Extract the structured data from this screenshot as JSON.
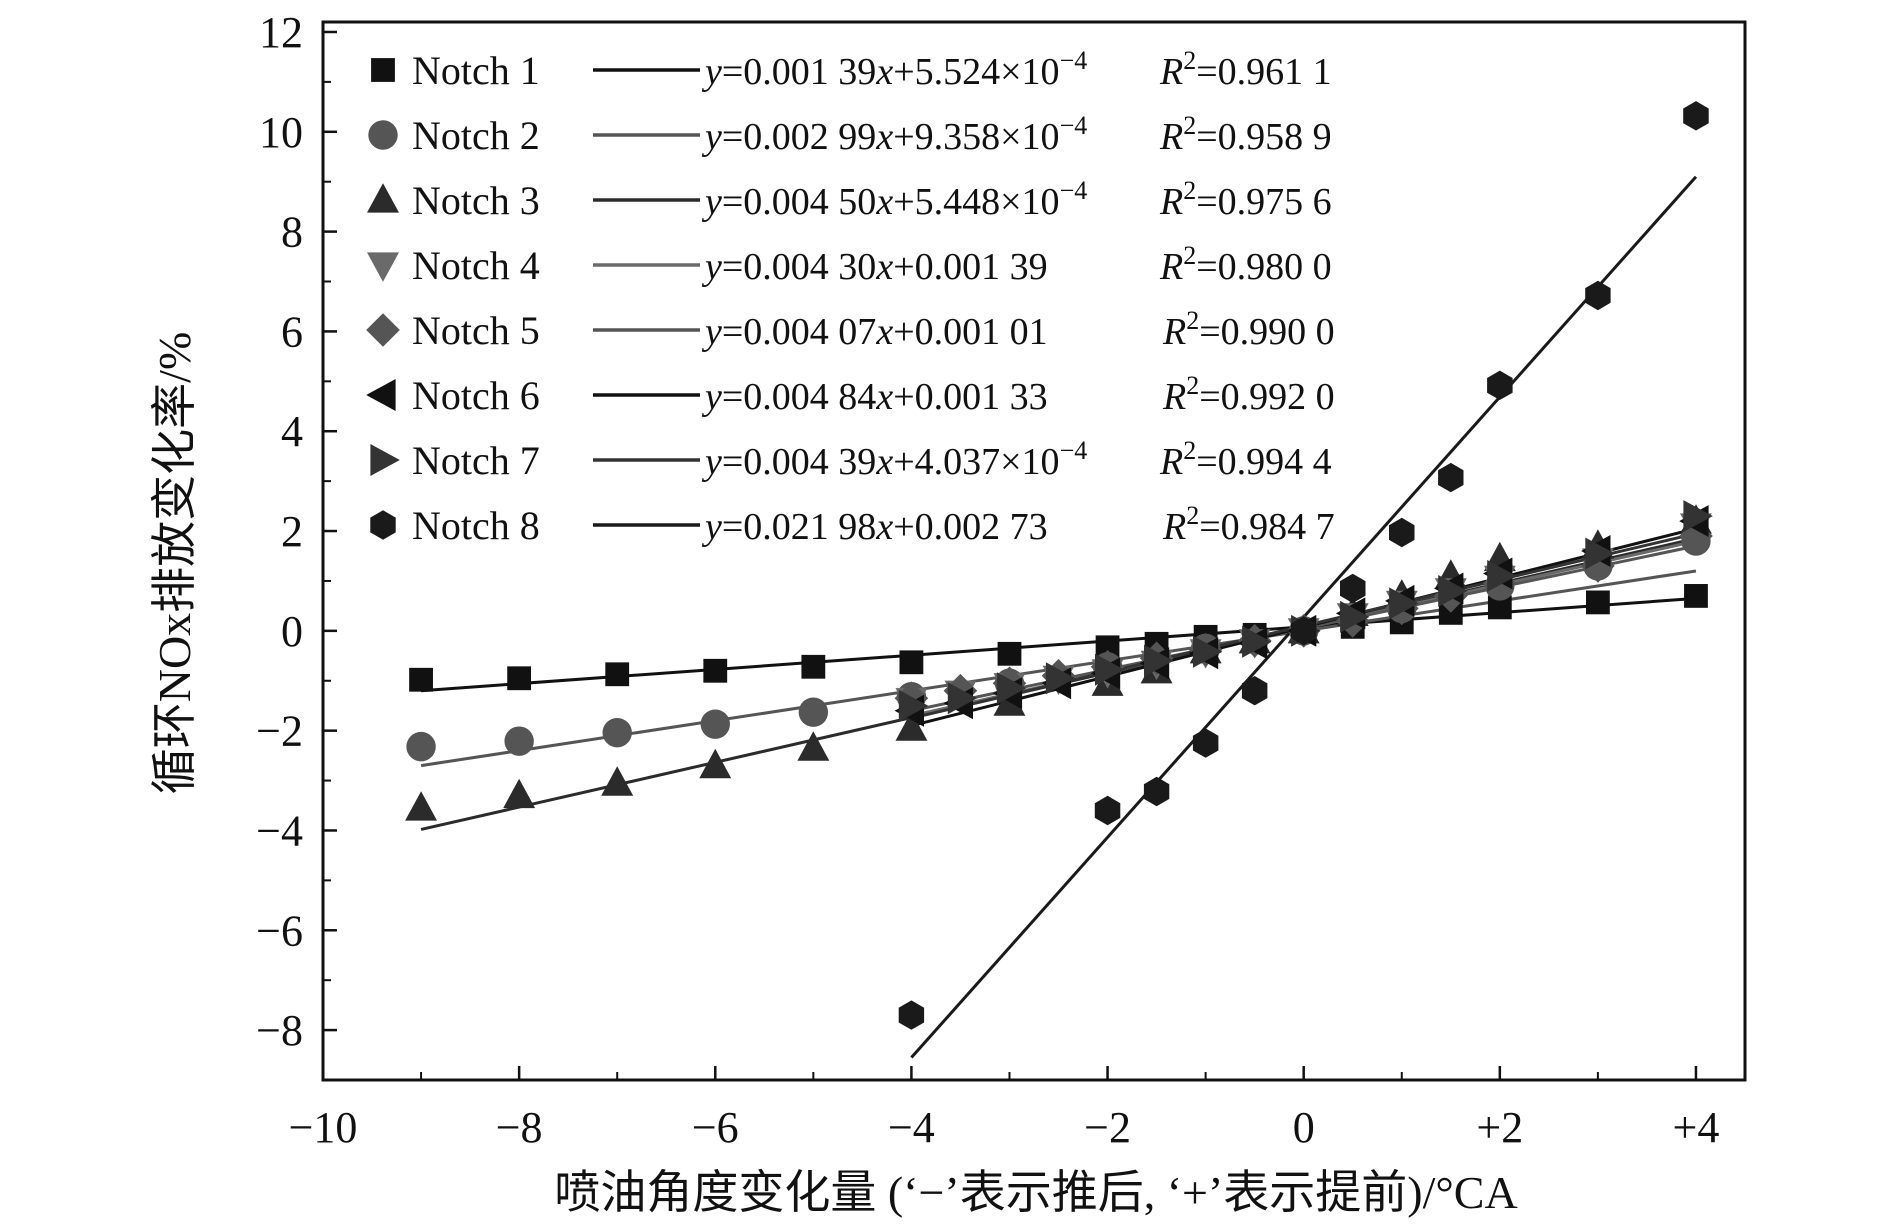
{
  "chart_data": {
    "type": "scatter",
    "title": "",
    "xlabel": "喷油角度变化量 (‘−’表示推后, ‘+’表示提前)/°CA",
    "ylabel": "循环NOx排放变化率/%",
    "xlim": [
      -10,
      4.5
    ],
    "ylim": [
      -9,
      12.2
    ],
    "x_ticks": [
      {
        "value": -10,
        "label": "−10"
      },
      {
        "value": -8,
        "label": "−8"
      },
      {
        "value": -6,
        "label": "−6"
      },
      {
        "value": -4,
        "label": "−4"
      },
      {
        "value": -2,
        "label": "−2"
      },
      {
        "value": 0,
        "label": "0"
      },
      {
        "value": 2,
        "label": "+2"
      },
      {
        "value": 4,
        "label": "+4"
      }
    ],
    "y_ticks": [
      {
        "value": -8,
        "label": "−8"
      },
      {
        "value": -6,
        "label": "−6"
      },
      {
        "value": -4,
        "label": "−4"
      },
      {
        "value": -2,
        "label": "−2"
      },
      {
        "value": 0,
        "label": "0"
      },
      {
        "value": 2,
        "label": "2"
      },
      {
        "value": 4,
        "label": "4"
      },
      {
        "value": 6,
        "label": "6"
      },
      {
        "value": 8,
        "label": "8"
      },
      {
        "value": 10,
        "label": "10"
      },
      {
        "value": 12,
        "label": "12"
      }
    ],
    "grid": false,
    "legend_position": "top-left",
    "series": [
      {
        "name": "Notch 1",
        "marker": "square",
        "color": "#111111",
        "equation": {
          "coef": "0.001 39",
          "intercept": "5.524×10",
          "exp": "−4"
        },
        "r2": "0.961 1",
        "fit_line": {
          "x": [
            -9,
            4
          ],
          "y": [
            -1.2,
            0.65
          ]
        },
        "points": [
          [
            -9,
            -0.98
          ],
          [
            -8,
            -0.95
          ],
          [
            -7,
            -0.87
          ],
          [
            -6,
            -0.8
          ],
          [
            -5,
            -0.72
          ],
          [
            -4,
            -0.63
          ],
          [
            -3,
            -0.46
          ],
          [
            -2,
            -0.33
          ],
          [
            -1.5,
            -0.26
          ],
          [
            -1,
            -0.12
          ],
          [
            -0.5,
            -0.08
          ],
          [
            0,
            0
          ],
          [
            0.5,
            0.08
          ],
          [
            1,
            0.17
          ],
          [
            1.5,
            0.36
          ],
          [
            2,
            0.47
          ],
          [
            3,
            0.57
          ],
          [
            4,
            0.7
          ]
        ]
      },
      {
        "name": "Notch 2",
        "marker": "circle",
        "color": "#555555",
        "equation": {
          "coef": "0.002 99",
          "intercept": "9.358×10",
          "exp": "−4"
        },
        "r2": "0.958 9",
        "fit_line": {
          "x": [
            -9,
            4
          ],
          "y": [
            -2.7,
            1.2
          ]
        },
        "points": [
          [
            -9,
            -2.32
          ],
          [
            -8,
            -2.21
          ],
          [
            -7,
            -2.04
          ],
          [
            -6,
            -1.87
          ],
          [
            -5,
            -1.63
          ],
          [
            -4,
            -1.32
          ],
          [
            -3,
            -1.05
          ],
          [
            -2,
            -0.72
          ],
          [
            -1,
            -0.35
          ],
          [
            0,
            0
          ],
          [
            1,
            0.45
          ],
          [
            2,
            0.9
          ],
          [
            3,
            1.3
          ],
          [
            4,
            1.8
          ]
        ]
      },
      {
        "name": "Notch 3",
        "marker": "triangle-up",
        "color": "#2b2b2b",
        "equation": {
          "coef": "0.004 50",
          "intercept": "5.448×10",
          "exp": "−4"
        },
        "r2": "0.975 6",
        "fit_line": {
          "x": [
            -9,
            4
          ],
          "y": [
            -3.98,
            1.85
          ]
        },
        "points": [
          [
            -9,
            -3.55
          ],
          [
            -8,
            -3.3
          ],
          [
            -7,
            -3.05
          ],
          [
            -6,
            -2.7
          ],
          [
            -5,
            -2.35
          ],
          [
            -4,
            -1.95
          ],
          [
            -3,
            -1.45
          ],
          [
            -2,
            -1.05
          ],
          [
            -1.5,
            -0.8
          ],
          [
            -1,
            -0.4
          ],
          [
            -0.5,
            -0.2
          ],
          [
            0,
            0
          ],
          [
            0.5,
            0.35
          ],
          [
            1,
            0.7
          ],
          [
            1.5,
            1.1
          ],
          [
            2,
            1.45
          ],
          [
            3,
            1.7
          ],
          [
            4,
            2.2
          ]
        ]
      },
      {
        "name": "Notch 4",
        "marker": "triangle-down",
        "color": "#6a6a6a",
        "equation": {
          "coef": "0.004 30",
          "intercept": "0.001 39",
          "exp": ""
        },
        "r2": "0.980 0",
        "fit_line": {
          "x": [
            -4,
            4
          ],
          "y": [
            -1.7,
            1.8
          ]
        },
        "points": [
          [
            -4,
            -1.4
          ],
          [
            -3.5,
            -1.25
          ],
          [
            -3,
            -1.1
          ],
          [
            -2.5,
            -0.95
          ],
          [
            -2,
            -0.82
          ],
          [
            -1.5,
            -0.65
          ],
          [
            -1,
            -0.42
          ],
          [
            -0.5,
            -0.22
          ],
          [
            0,
            0
          ],
          [
            0.5,
            0.3
          ],
          [
            1,
            0.55
          ],
          [
            1.5,
            0.8
          ],
          [
            2,
            1.05
          ],
          [
            3,
            1.4
          ],
          [
            4,
            2.1
          ]
        ]
      },
      {
        "name": "Notch 5",
        "marker": "diamond",
        "color": "#555555",
        "equation": {
          "coef": "0.004 07",
          "intercept": "0.001 01",
          "exp": ""
        },
        "r2": "0.990 0",
        "fit_line": {
          "x": [
            -4,
            4
          ],
          "y": [
            -1.6,
            1.7
          ]
        },
        "points": [
          [
            -4,
            -1.35
          ],
          [
            -3.5,
            -1.2
          ],
          [
            -3,
            -1.05
          ],
          [
            -2.5,
            -0.9
          ],
          [
            -2,
            -0.72
          ],
          [
            -1.5,
            -0.55
          ],
          [
            -1,
            -0.38
          ],
          [
            -0.5,
            -0.2
          ],
          [
            0,
            0
          ],
          [
            0.5,
            0.2
          ],
          [
            1,
            0.45
          ],
          [
            1.5,
            0.7
          ],
          [
            2,
            0.95
          ],
          [
            3,
            1.3
          ],
          [
            4,
            1.9
          ]
        ]
      },
      {
        "name": "Notch 6",
        "marker": "triangle-left",
        "color": "#111111",
        "equation": {
          "coef": "0.004 84",
          "intercept": "0.001 33",
          "exp": ""
        },
        "r2": "0.992 0",
        "fit_line": {
          "x": [
            -4,
            4
          ],
          "y": [
            -1.9,
            2.05
          ]
        },
        "points": [
          [
            -4,
            -1.6
          ],
          [
            -3.5,
            -1.45
          ],
          [
            -3,
            -1.25
          ],
          [
            -2.5,
            -1.05
          ],
          [
            -2,
            -0.85
          ],
          [
            -1.5,
            -0.65
          ],
          [
            -1,
            -0.45
          ],
          [
            -0.5,
            -0.25
          ],
          [
            0,
            0
          ],
          [
            0.5,
            0.35
          ],
          [
            1,
            0.6
          ],
          [
            1.5,
            0.85
          ],
          [
            2,
            1.15
          ],
          [
            3,
            1.6
          ],
          [
            4,
            2.2
          ]
        ]
      },
      {
        "name": "Notch 7",
        "marker": "triangle-right",
        "color": "#333333",
        "equation": {
          "coef": "0.004 39",
          "intercept": "4.037×10",
          "exp": "−4"
        },
        "r2": "0.994 4",
        "fit_line": {
          "x": [
            -4,
            4
          ],
          "y": [
            -1.75,
            1.95
          ]
        },
        "points": [
          [
            -4,
            -1.5
          ],
          [
            -3.5,
            -1.35
          ],
          [
            -3,
            -1.15
          ],
          [
            -2.5,
            -0.95
          ],
          [
            -2,
            -0.78
          ],
          [
            -1.5,
            -0.6
          ],
          [
            -1,
            -0.42
          ],
          [
            -0.5,
            -0.22
          ],
          [
            0,
            0
          ],
          [
            0.5,
            0.28
          ],
          [
            1,
            0.55
          ],
          [
            1.5,
            0.8
          ],
          [
            2,
            1.1
          ],
          [
            3,
            1.55
          ],
          [
            4,
            2.3
          ]
        ]
      },
      {
        "name": "Notch 8",
        "marker": "hexagon",
        "color": "#1a1a1a",
        "equation": {
          "coef": "0.021 98",
          "intercept": "0.002 73",
          "exp": ""
        },
        "r2": "0.984 7",
        "fit_line": {
          "x": [
            -4,
            4
          ],
          "y": [
            -8.55,
            9.1
          ]
        },
        "points": [
          [
            -4,
            -7.7
          ],
          [
            -2,
            -3.6
          ],
          [
            -1.5,
            -3.22
          ],
          [
            -1,
            -2.25
          ],
          [
            -0.5,
            -1.2
          ],
          [
            0,
            0
          ],
          [
            0.5,
            0.85
          ],
          [
            1,
            1.97
          ],
          [
            1.5,
            3.07
          ],
          [
            2,
            4.92
          ],
          [
            3,
            6.72
          ],
          [
            4,
            10.32
          ]
        ]
      }
    ]
  }
}
